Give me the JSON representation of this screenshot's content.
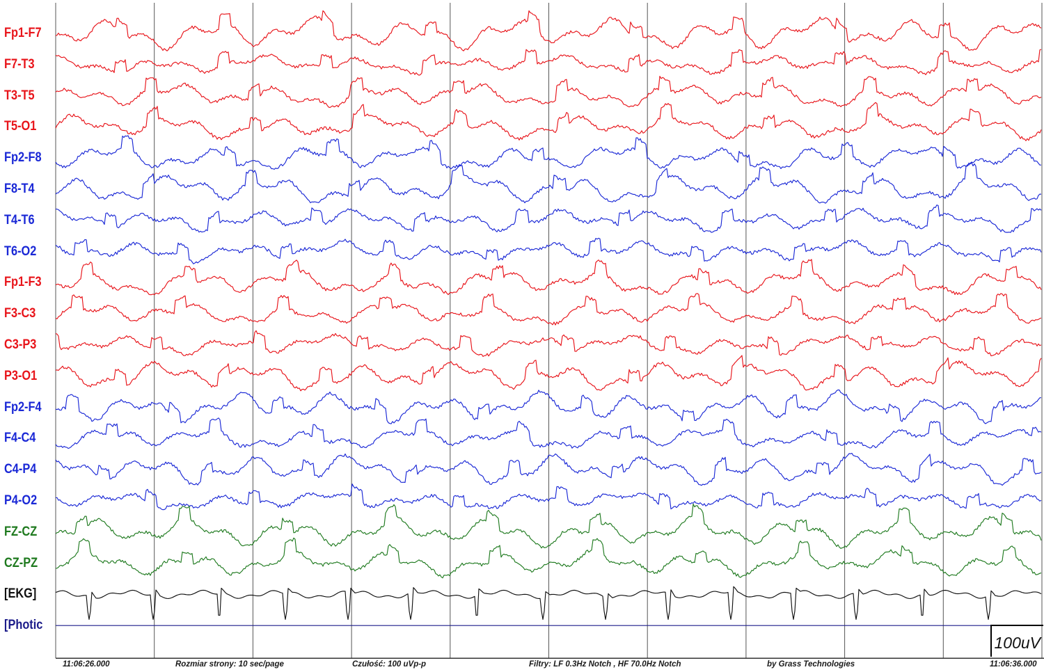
{
  "channels": [
    {
      "label": "Fp1-F7",
      "color": "#e8141a"
    },
    {
      "label": "F7-T3",
      "color": "#e8141a"
    },
    {
      "label": "T3-T5",
      "color": "#e8141a"
    },
    {
      "label": "T5-O1",
      "color": "#e8141a"
    },
    {
      "label": "Fp2-F8",
      "color": "#1a28d6"
    },
    {
      "label": "F8-T4",
      "color": "#1a28d6"
    },
    {
      "label": "T4-T6",
      "color": "#1a28d6"
    },
    {
      "label": "T6-O2",
      "color": "#1a28d6"
    },
    {
      "label": "Fp1-F3",
      "color": "#e8141a"
    },
    {
      "label": "F3-C3",
      "color": "#e8141a"
    },
    {
      "label": "C3-P3",
      "color": "#e8141a"
    },
    {
      "label": "P3-O1",
      "color": "#e8141a"
    },
    {
      "label": "Fp2-F4",
      "color": "#1a28d6"
    },
    {
      "label": "F4-C4",
      "color": "#1a28d6"
    },
    {
      "label": "C4-P4",
      "color": "#1a28d6"
    },
    {
      "label": "P4-O2",
      "color": "#1a28d6"
    },
    {
      "label": "FZ-CZ",
      "color": "#1f7a1f"
    },
    {
      "label": "CZ-PZ",
      "color": "#1f7a1f"
    },
    {
      "label": "[EKG]",
      "color": "#111111"
    },
    {
      "label": "[Photic",
      "color": "#1c1c8a"
    }
  ],
  "scale": {
    "label": "100uV"
  },
  "status": {
    "start_time": "11:06:26.000",
    "page_size": "Rozmiar strony: 10 sec/page",
    "sensitivity": "Czułość:  100 uVp-p",
    "filters": "Filtry: LF  0.3Hz Notch , HF 70.0Hz Notch",
    "vendor": "by Grass Technologies",
    "end_time": "11:06:36.000"
  },
  "page_seconds": 10,
  "grid_color": "#555555"
}
